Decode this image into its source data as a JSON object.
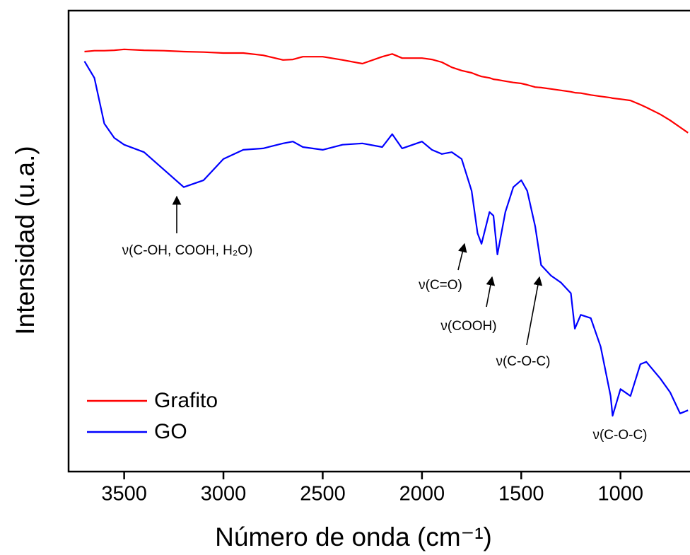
{
  "chart_data": {
    "type": "line",
    "x_label": "Número de onda (cm⁻¹)",
    "y_label": "Intensidad (u.a.)",
    "x": [
      3700,
      3650,
      3600,
      3550,
      3500,
      3400,
      3300,
      3200,
      3100,
      3000,
      2900,
      2800,
      2700,
      2650,
      2600,
      2500,
      2400,
      2300,
      2200,
      2150,
      2100,
      2000,
      1950,
      1900,
      1850,
      1800,
      1750,
      1720,
      1700,
      1660,
      1640,
      1620,
      1580,
      1540,
      1500,
      1470,
      1430,
      1400,
      1350,
      1300,
      1250,
      1230,
      1200,
      1150,
      1100,
      1050,
      1040,
      1000,
      950,
      900,
      870,
      800,
      750,
      700,
      660
    ],
    "series": [
      {
        "name": "Grafito",
        "color": "#ff0000",
        "values": [
          91.1,
          91.3,
          91.3,
          91.4,
          91.6,
          91.4,
          91.3,
          91.1,
          91.0,
          90.8,
          90.8,
          90.3,
          89.3,
          89.4,
          90.0,
          90.0,
          89.3,
          88.5,
          90.0,
          90.6,
          89.7,
          89.7,
          89.4,
          88.8,
          87.7,
          87.0,
          86.5,
          86.0,
          85.7,
          85.4,
          85.1,
          85.0,
          84.7,
          84.4,
          84.2,
          83.9,
          83.4,
          83.3,
          83.0,
          82.7,
          82.4,
          82.2,
          82.1,
          81.7,
          81.4,
          81.1,
          81.0,
          80.8,
          80.5,
          79.6,
          79.0,
          77.5,
          76.2,
          74.7,
          73.5
        ]
      },
      {
        "name": "GO",
        "color": "#0000ff",
        "values": [
          89.0,
          85.4,
          75.5,
          72.4,
          70.9,
          69.3,
          65.5,
          61.7,
          63.2,
          67.8,
          69.8,
          70.1,
          71.2,
          71.6,
          70.4,
          69.8,
          70.9,
          71.2,
          70.4,
          73.2,
          70.1,
          71.6,
          69.8,
          68.9,
          69.3,
          67.8,
          60.9,
          51.7,
          49.4,
          56.3,
          55.5,
          47.1,
          56.3,
          61.7,
          63.2,
          60.9,
          53.2,
          44.8,
          42.5,
          41.0,
          38.7,
          31.0,
          34.0,
          33.3,
          27.1,
          16.4,
          12.1,
          17.9,
          16.4,
          23.3,
          23.8,
          20.2,
          17.2,
          12.6,
          13.3
        ]
      }
    ],
    "xlim": [
      3780,
      650
    ],
    "xticks": [
      3500,
      3000,
      2500,
      2000,
      1500,
      1000
    ],
    "ylim": [
      0,
      100
    ],
    "legend": "lower left",
    "annotations": [
      "ν(C-OH, COOH, H₂O)",
      "ν(C=O)",
      "ν(COOH)",
      "ν(C-O-C)",
      "ν(C-O-C)"
    ]
  }
}
